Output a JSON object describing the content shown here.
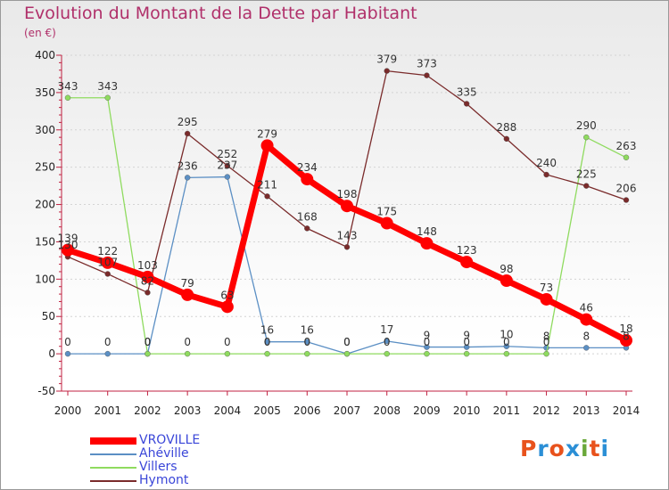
{
  "title": "Evolution du Montant de la Dette par Habitant",
  "subtitle": "(en €)",
  "logo": {
    "text": "Proxiti",
    "colors": [
      "#e8521c",
      "#2b8fd6",
      "#e8521c",
      "#2b8fd6",
      "#6aa83a",
      "#e8521c",
      "#2b8fd6"
    ]
  },
  "chart_data": {
    "type": "line",
    "x": [
      "2000",
      "2001",
      "2002",
      "2003",
      "2004",
      "2005",
      "2006",
      "2007",
      "2008",
      "2009",
      "2010",
      "2011",
      "2012",
      "2013",
      "2014"
    ],
    "ylim": [
      -50,
      400
    ],
    "yticks": [
      -50,
      0,
      50,
      100,
      150,
      200,
      250,
      300,
      350,
      400
    ],
    "grid": true,
    "legend_position": "bottom-left",
    "series": [
      {
        "name": "VROVILLE",
        "color": "#ff0000",
        "width": 7,
        "marker_radius": 7,
        "values": [
          139,
          122,
          103,
          79,
          63,
          279,
          234,
          198,
          175,
          148,
          123,
          98,
          73,
          46,
          18
        ],
        "labels": [
          "139",
          "122",
          "103",
          "79",
          "63",
          "279",
          "234",
          "198",
          "175",
          "148",
          "123",
          "98",
          "73",
          "46",
          "18"
        ]
      },
      {
        "name": "Ahéville",
        "color": "#5b8fc4",
        "width": 1.3,
        "marker_radius": 3,
        "values": [
          0,
          0,
          0,
          236,
          237,
          16,
          16,
          0,
          17,
          9,
          9,
          10,
          8,
          8,
          8
        ],
        "labels": [
          "0",
          "0",
          "0",
          "236",
          "237",
          "16",
          "16",
          "0",
          "17",
          "9",
          "9",
          "10",
          "8",
          "8",
          "8"
        ]
      },
      {
        "name": "Villers",
        "color": "#8fdb5f",
        "width": 1.3,
        "marker_radius": 3,
        "values": [
          343,
          343,
          0,
          0,
          0,
          0,
          0,
          0,
          0,
          0,
          0,
          0,
          0,
          290,
          263
        ],
        "labels": [
          "343",
          "343",
          "0",
          "0",
          "0",
          "0",
          "0",
          "0",
          "0",
          "0",
          "0",
          "0",
          "0",
          "290",
          "263"
        ]
      },
      {
        "name": "Hymont",
        "color": "#7a2b2b",
        "width": 1.3,
        "marker_radius": 3,
        "values": [
          130,
          107,
          82,
          295,
          252,
          211,
          168,
          143,
          379,
          373,
          335,
          288,
          240,
          225,
          206
        ],
        "labels": [
          "130",
          "107",
          "82",
          "295",
          "252",
          "211",
          "168",
          "143",
          "379",
          "373",
          "335",
          "288",
          "240",
          "225",
          "206"
        ]
      }
    ]
  }
}
